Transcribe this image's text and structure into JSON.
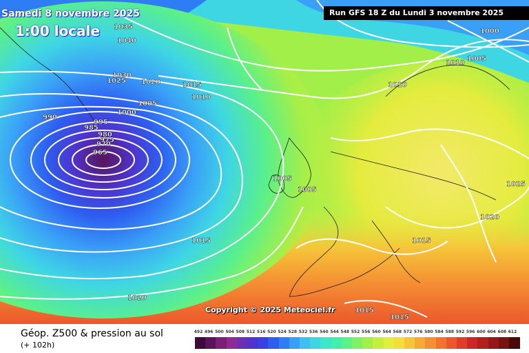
{
  "map": {
    "run_label": "Run GFS 18 Z du Lundi 3 novembre 2025",
    "valid_date": "Samedi 8 novembre 2025",
    "valid_hour": "1:00 locale",
    "copyright": "Copyright © 2025 Meteociel.fr",
    "field_title": "Géop. Z500 & pression au sol",
    "lead_time": "(+ 102h)",
    "isobar_labels": [
      "1035",
      "1040",
      "1030",
      "1025",
      "1020",
      "1015",
      "1010",
      "1005",
      "1000",
      "995",
      "990",
      "985",
      "980",
      "975",
      "970",
      "965",
      "1005",
      "1005",
      "1015",
      "1020",
      "1015",
      "1015",
      "1020",
      "1010",
      "1010",
      "1010",
      "1005",
      "1000",
      "1025",
      "1015",
      "1015",
      "1020"
    ],
    "legend": {
      "ticks": [
        "492",
        "496",
        "500",
        "504",
        "508",
        "512",
        "516",
        "520",
        "524",
        "528",
        "532",
        "536",
        "540",
        "544",
        "548",
        "552",
        "556",
        "560",
        "564",
        "568",
        "572",
        "576",
        "580",
        "584",
        "588",
        "592",
        "596",
        "600",
        "604",
        "608",
        "612"
      ],
      "colors": [
        "#3d0a3a",
        "#5a1459",
        "#7a1e78",
        "#8f2a95",
        "#6b2fb5",
        "#4e33cc",
        "#3842e0",
        "#2d5ef0",
        "#2f7df5",
        "#3aa0f7",
        "#3fbff2",
        "#3fd6e4",
        "#3ee6cc",
        "#42efaa",
        "#5af08a",
        "#80f066",
        "#a3ef4a",
        "#c6ee3e",
        "#e4ec3e",
        "#f3de3c",
        "#f6c53a",
        "#f6aa36",
        "#f48f33",
        "#f17330",
        "#ec572c",
        "#e03c2a",
        "#cc2626",
        "#b21f1f",
        "#951818",
        "#761212",
        "#4a0a0a"
      ]
    }
  }
}
